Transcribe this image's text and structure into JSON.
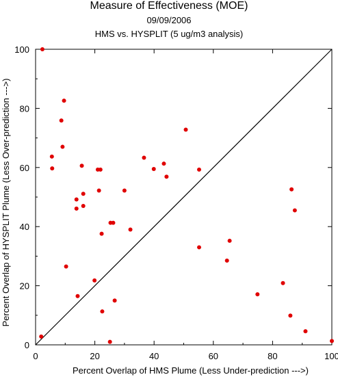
{
  "chart_data": {
    "type": "scatter",
    "title": "Measure of Effectiveness (MOE)",
    "subtitle_date": "09/09/2006",
    "subtitle": "HMS vs. HYSPLIT  (5 ug/m3 analysis)",
    "xlabel": "Percent Overlap of HMS Plume (Less Under-prediction --->)",
    "ylabel": "Percent Overlap of HYSPLIT Plume (Less Over-prediction --->)",
    "xlim": [
      0,
      100
    ],
    "ylim": [
      0,
      100
    ],
    "xticks": [
      0,
      20,
      40,
      60,
      80,
      100
    ],
    "yticks": [
      0,
      20,
      40,
      60,
      80,
      100
    ],
    "grid": false,
    "reference_line": "y = x",
    "marker_color": "#e00000",
    "series": [
      {
        "points": [
          [
            2.3,
            100
          ],
          [
            9.6,
            82.6
          ],
          [
            8.7,
            75.9
          ],
          [
            9.1,
            67.0
          ],
          [
            5.5,
            63.7
          ],
          [
            5.6,
            59.7
          ],
          [
            15.6,
            60.6
          ],
          [
            21.0,
            59.3
          ],
          [
            21.9,
            59.3
          ],
          [
            21.4,
            52.2
          ],
          [
            16.1,
            51.1
          ],
          [
            13.8,
            49.2
          ],
          [
            16.1,
            47.0
          ],
          [
            13.8,
            46.1
          ],
          [
            25.3,
            41.3
          ],
          [
            26.2,
            41.3
          ],
          [
            30.0,
            52.2
          ],
          [
            36.6,
            63.3
          ],
          [
            39.9,
            59.5
          ],
          [
            43.3,
            61.3
          ],
          [
            44.2,
            56.9
          ],
          [
            50.7,
            72.8
          ],
          [
            55.2,
            59.3
          ],
          [
            32.0,
            39.0
          ],
          [
            22.3,
            37.6
          ],
          [
            10.3,
            26.5
          ],
          [
            19.9,
            21.8
          ],
          [
            14.2,
            16.5
          ],
          [
            26.7,
            15.0
          ],
          [
            22.5,
            11.3
          ],
          [
            25.1,
            1.0
          ],
          [
            1.9,
            2.8
          ],
          [
            55.2,
            33.0
          ],
          [
            65.5,
            35.2
          ],
          [
            64.6,
            28.5
          ],
          [
            74.9,
            17.1
          ],
          [
            83.5,
            20.9
          ],
          [
            86.4,
            52.6
          ],
          [
            87.5,
            45.5
          ],
          [
            86.0,
            9.9
          ],
          [
            91.1,
            4.6
          ],
          [
            100.0,
            1.3
          ]
        ]
      }
    ]
  }
}
